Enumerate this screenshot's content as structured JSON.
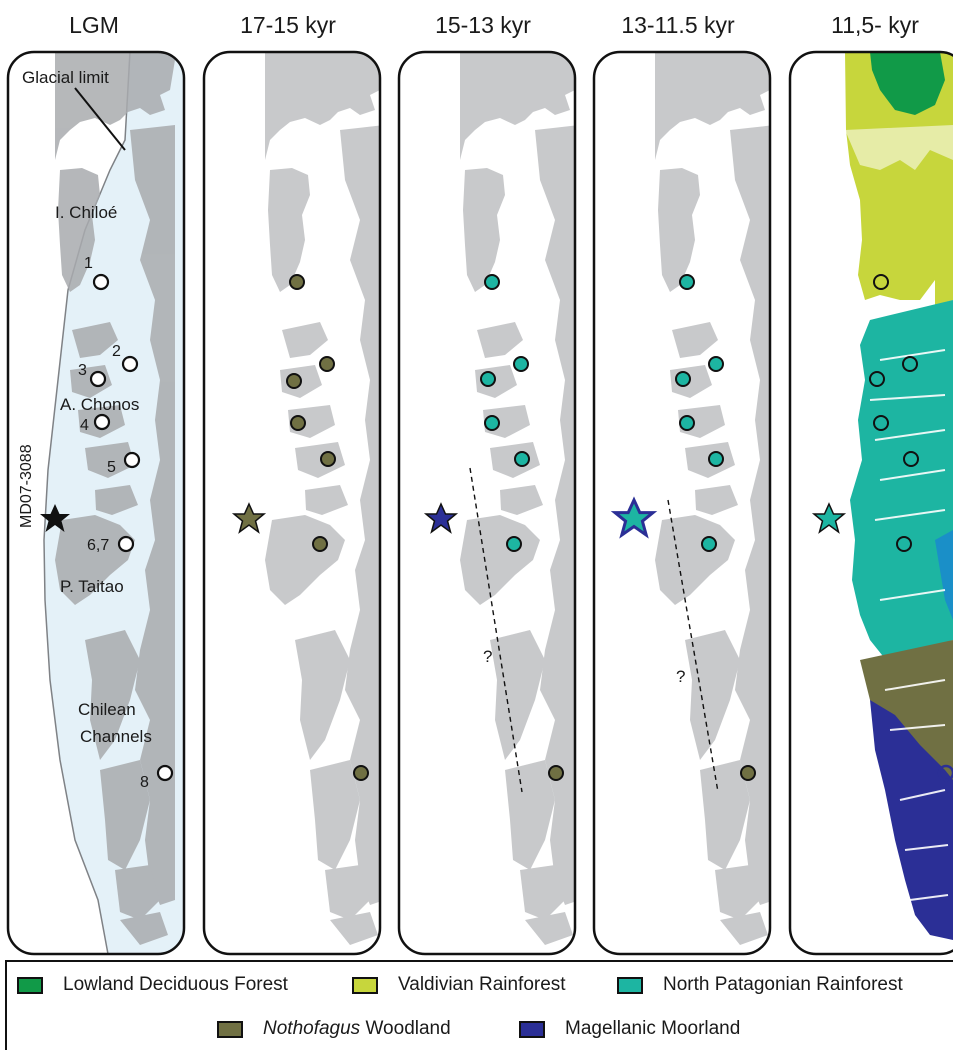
{
  "panels": [
    {
      "title": "LGM"
    },
    {
      "title": "17-15 kyr"
    },
    {
      "title": "15-13 kyr"
    },
    {
      "title": "13-11.5 kyr"
    },
    {
      "title": "11,5- kyr"
    }
  ],
  "lgm_labels": {
    "glacial_limit": "Glacial limit",
    "chiloe": "I. Chiloé",
    "chonos": "A. Chonos",
    "taitao": "P. Taitao",
    "channels_1": "Chilean",
    "channels_2": "Channels",
    "core": "MD07-3088"
  },
  "site_labels": [
    "1",
    "2",
    "3",
    "4",
    "5",
    "6,7",
    "8"
  ],
  "question_mark": "?",
  "legend": {
    "lowland": {
      "label": "Lowland Deciduous Forest",
      "color": "#119a48"
    },
    "valdivian": {
      "label": "Valdivian Rainforest",
      "color": "#c7d63c"
    },
    "north_patagonian": {
      "label": "North Patagonian Rainforest",
      "color": "#1db5a2"
    },
    "nothofagus": {
      "label_italic": "Nothofagus",
      "label_rest": " Woodland",
      "color": "#707043"
    },
    "magellanic": {
      "label": "Magellanic Moorland",
      "color": "#2b2f96"
    }
  },
  "colors": {
    "land": "#c8c9cb",
    "ice": "#e4f1f8",
    "lgm_land": "#a9abae"
  }
}
